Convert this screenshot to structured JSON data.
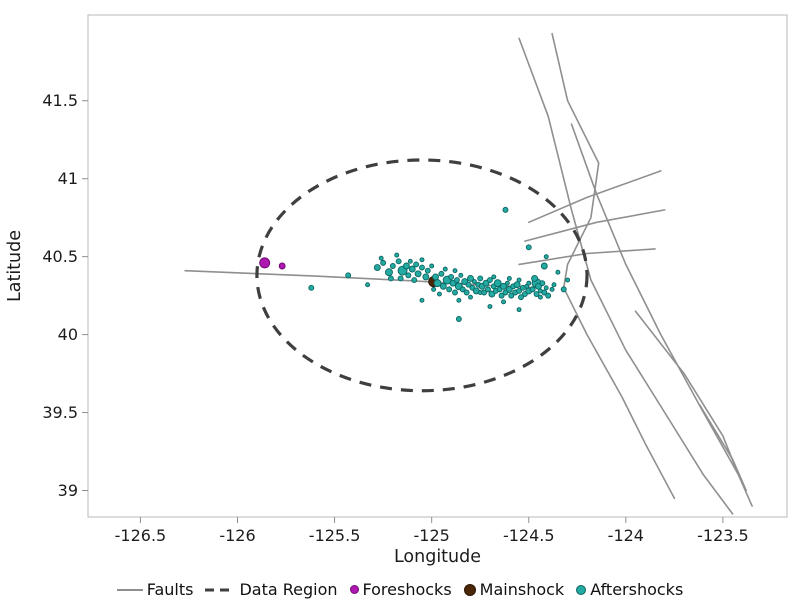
{
  "figure": {
    "background": "#ffffff"
  },
  "chart_data": {
    "type": "scatter",
    "title": "",
    "xlabel": "Longitude",
    "ylabel": "Latitude",
    "xlim": [
      -126.77,
      -123.17
    ],
    "ylim": [
      38.83,
      42.05
    ],
    "xticks": [
      -126.5,
      -126,
      -125.5,
      -125,
      -124.5,
      -124,
      -123.5
    ],
    "yticks": [
      39,
      39.5,
      40,
      40.5,
      41,
      41.5
    ],
    "grid": false,
    "legend_position": "bottom",
    "colors": {
      "faults": "#8f8f8f",
      "data_region": "#3f3f3f",
      "foreshocks": "#ae17b0",
      "foreshocks_stroke": "#6e0a70",
      "mainshock": "#4a2607",
      "mainshock_stroke": "#2e1704",
      "aftershocks": "#23aaa2",
      "aftershocks_stroke": "#0c6560",
      "axis_text": "#1c1c1c",
      "frame": "#b8b8b8",
      "tick": "#8f8f8f"
    },
    "data_region_ellipse": {
      "center": [
        -125.05,
        40.38
      ],
      "rx": 0.85,
      "ry": 0.74,
      "dash": "12 9",
      "stroke_width": 3.2
    },
    "faults": [
      [
        [
          -126.27,
          40.41
        ],
        [
          -125.6,
          40.375
        ],
        [
          -125.1,
          40.345
        ],
        [
          -124.7,
          40.315
        ],
        [
          -124.44,
          40.3
        ]
      ],
      [
        [
          -124.55,
          41.9
        ],
        [
          -124.4,
          41.4
        ],
        [
          -124.33,
          41.05
        ],
        [
          -124.28,
          40.8
        ],
        [
          -124.18,
          40.35
        ],
        [
          -124.0,
          39.9
        ],
        [
          -123.8,
          39.5
        ],
        [
          -123.6,
          39.1
        ],
        [
          -123.45,
          38.85
        ]
      ],
      [
        [
          -124.28,
          41.35
        ],
        [
          -124.15,
          40.9
        ],
        [
          -124.0,
          40.45
        ],
        [
          -123.82,
          40.0
        ],
        [
          -123.6,
          39.5
        ],
        [
          -123.42,
          39.1
        ],
        [
          -123.35,
          38.9
        ]
      ],
      [
        [
          -124.38,
          41.93
        ],
        [
          -124.3,
          41.5
        ],
        [
          -124.14,
          41.1
        ],
        [
          -124.18,
          40.75
        ],
        [
          -124.3,
          40.45
        ],
        [
          -124.32,
          40.3
        ],
        [
          -124.2,
          40.0
        ],
        [
          -124.02,
          39.6
        ],
        [
          -123.9,
          39.3
        ],
        [
          -123.75,
          38.95
        ]
      ],
      [
        [
          -124.5,
          40.72
        ],
        [
          -124.2,
          40.88
        ],
        [
          -123.82,
          41.05
        ]
      ],
      [
        [
          -124.52,
          40.6
        ],
        [
          -124.15,
          40.72
        ],
        [
          -123.8,
          40.8
        ]
      ],
      [
        [
          -124.55,
          40.45
        ],
        [
          -124.2,
          40.52
        ],
        [
          -123.85,
          40.55
        ]
      ],
      [
        [
          -123.95,
          40.15
        ],
        [
          -123.7,
          39.75
        ],
        [
          -123.5,
          39.35
        ],
        [
          -123.42,
          39.1
        ]
      ],
      [
        [
          -123.62,
          39.55
        ],
        [
          -123.45,
          39.2
        ],
        [
          -123.38,
          39.0
        ]
      ]
    ],
    "foreshocks": [
      [
        -125.86,
        40.46,
        5
      ],
      [
        -125.77,
        40.44,
        3
      ]
    ],
    "mainshock": [
      [
        -124.99,
        40.34,
        5
      ]
    ],
    "aftershocks": [
      [
        -125.28,
        40.43,
        3
      ],
      [
        -125.25,
        40.46,
        2.5
      ],
      [
        -125.22,
        40.4,
        3.5
      ],
      [
        -125.2,
        40.44,
        2.5
      ],
      [
        -125.17,
        40.47,
        2.5
      ],
      [
        -125.15,
        40.41,
        4.5
      ],
      [
        -125.13,
        40.44,
        3
      ],
      [
        -125.12,
        40.38,
        2.5
      ],
      [
        -125.1,
        40.42,
        3
      ],
      [
        -125.08,
        40.45,
        2.5
      ],
      [
        -125.07,
        40.39,
        3
      ],
      [
        -125.05,
        40.43,
        2.5
      ],
      [
        -125.16,
        40.36,
        2.5
      ],
      [
        -125.09,
        40.35,
        2.5
      ],
      [
        -125.21,
        40.36,
        2.5
      ],
      [
        -125.26,
        40.49,
        2
      ],
      [
        -125.03,
        40.37,
        3
      ],
      [
        -125.02,
        40.41,
        2.5
      ],
      [
        -125.0,
        40.44,
        2
      ],
      [
        -125.05,
        40.48,
        2
      ],
      [
        -125.18,
        40.51,
        2
      ],
      [
        -125.11,
        40.47,
        2
      ],
      [
        -124.98,
        40.37,
        3
      ],
      [
        -124.97,
        40.33,
        3.5
      ],
      [
        -124.95,
        40.39,
        2.5
      ],
      [
        -124.94,
        40.31,
        3
      ],
      [
        -124.92,
        40.35,
        4
      ],
      [
        -124.91,
        40.29,
        2.5
      ],
      [
        -124.9,
        40.37,
        2.5
      ],
      [
        -124.89,
        40.33,
        3
      ],
      [
        -124.88,
        40.27,
        2.5
      ],
      [
        -124.87,
        40.35,
        2.5
      ],
      [
        -124.86,
        40.31,
        3.5
      ],
      [
        -124.85,
        40.38,
        2
      ],
      [
        -124.84,
        40.29,
        2.5
      ],
      [
        -124.83,
        40.34,
        3
      ],
      [
        -124.82,
        40.27,
        2.5
      ],
      [
        -124.81,
        40.32,
        2.5
      ],
      [
        -124.8,
        40.36,
        3
      ],
      [
        -124.79,
        40.3,
        2.5
      ],
      [
        -124.78,
        40.34,
        2
      ],
      [
        -124.77,
        40.28,
        3
      ],
      [
        -124.76,
        40.32,
        2.5
      ],
      [
        -124.99,
        40.29,
        2
      ],
      [
        -124.93,
        40.42,
        2
      ],
      [
        -124.96,
        40.26,
        2
      ],
      [
        -124.88,
        40.41,
        2
      ],
      [
        -124.8,
        40.24,
        2
      ],
      [
        -124.75,
        40.36,
        2.5
      ],
      [
        -124.75,
        40.27,
        2
      ],
      [
        -124.86,
        40.22,
        2
      ],
      [
        -124.74,
        40.31,
        3
      ],
      [
        -124.73,
        40.27,
        2.5
      ],
      [
        -124.72,
        40.33,
        3
      ],
      [
        -124.71,
        40.29,
        2.5
      ],
      [
        -124.7,
        40.35,
        2.5
      ],
      [
        -124.69,
        40.26,
        3
      ],
      [
        -124.68,
        40.31,
        2.5
      ],
      [
        -124.67,
        40.28,
        2.5
      ],
      [
        -124.66,
        40.33,
        3.5
      ],
      [
        -124.65,
        40.29,
        2.5
      ],
      [
        -124.64,
        40.25,
        2.5
      ],
      [
        -124.63,
        40.31,
        3
      ],
      [
        -124.62,
        40.27,
        2.5
      ],
      [
        -124.61,
        40.33,
        2
      ],
      [
        -124.6,
        40.29,
        3
      ],
      [
        -124.59,
        40.25,
        2.5
      ],
      [
        -124.58,
        40.31,
        2.5
      ],
      [
        -124.57,
        40.27,
        2.5
      ],
      [
        -124.56,
        40.32,
        3
      ],
      [
        -124.55,
        40.28,
        2.5
      ],
      [
        -124.54,
        40.24,
        2.5
      ],
      [
        -124.53,
        40.3,
        2.5
      ],
      [
        -124.52,
        40.26,
        2.5
      ],
      [
        -124.51,
        40.31,
        2
      ],
      [
        -124.5,
        40.28,
        3
      ],
      [
        -124.68,
        40.37,
        2
      ],
      [
        -124.6,
        40.36,
        2
      ],
      [
        -124.55,
        40.35,
        2
      ],
      [
        -124.5,
        40.33,
        2
      ],
      [
        -124.63,
        40.21,
        2
      ],
      [
        -124.48,
        40.29,
        2.5
      ],
      [
        -124.46,
        40.26,
        2.5
      ],
      [
        -124.46,
        40.33,
        4.5
      ],
      [
        -124.45,
        40.31,
        3
      ],
      [
        -124.44,
        40.28,
        2
      ],
      [
        -124.43,
        40.33,
        2.5
      ],
      [
        -124.42,
        40.27,
        2.5
      ],
      [
        -124.41,
        40.3,
        2
      ],
      [
        -124.4,
        40.25,
        2.5
      ],
      [
        -124.38,
        40.29,
        2
      ],
      [
        -124.37,
        40.32,
        2
      ],
      [
        -124.47,
        40.36,
        3
      ],
      [
        -124.44,
        40.24,
        2
      ],
      [
        -125.62,
        40.3,
        2.5
      ],
      [
        -125.43,
        40.38,
        2.5
      ],
      [
        -125.33,
        40.32,
        2
      ],
      [
        -124.62,
        40.8,
        2.5
      ],
      [
        -124.5,
        40.56,
        2.5
      ],
      [
        -124.42,
        40.44,
        3
      ],
      [
        -124.41,
        40.5,
        2
      ],
      [
        -124.35,
        40.4,
        2
      ],
      [
        -124.32,
        40.29,
        2.5
      ],
      [
        -124.86,
        40.1,
        2.5
      ],
      [
        -124.55,
        40.16,
        2
      ],
      [
        -125.05,
        40.22,
        2
      ],
      [
        -124.7,
        40.18,
        2
      ],
      [
        -124.3,
        40.35,
        2
      ]
    ],
    "legend": [
      {
        "label": "Faults",
        "marker": "line"
      },
      {
        "label": "Data Region",
        "marker": "dashed-line"
      },
      {
        "label": "Foreshocks",
        "marker": "dot"
      },
      {
        "label": "Mainshock",
        "marker": "dot"
      },
      {
        "label": "Aftershocks",
        "marker": "dot"
      }
    ]
  }
}
